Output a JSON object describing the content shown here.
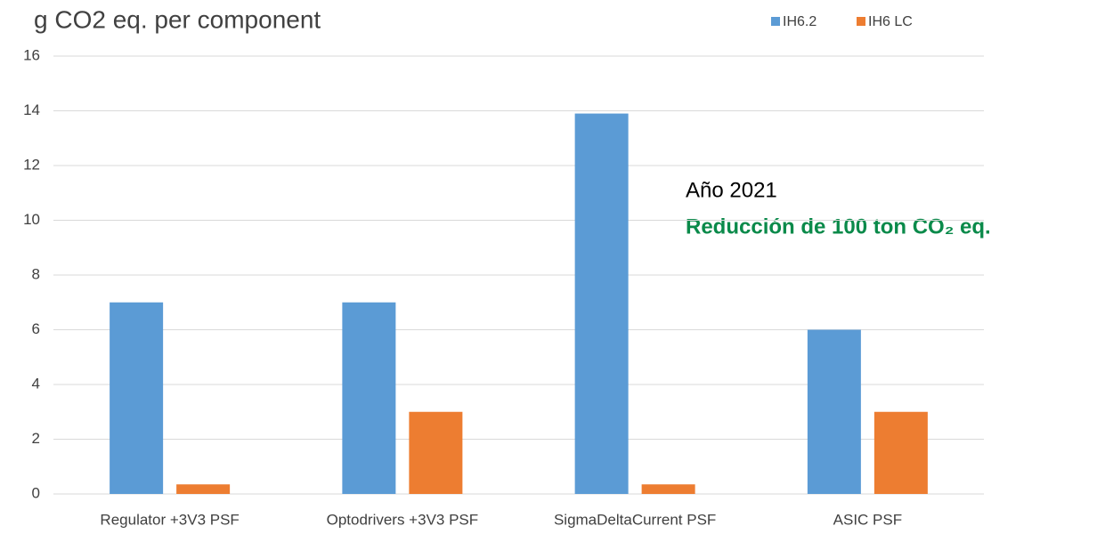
{
  "chart_data": {
    "type": "bar",
    "title": "g CO2 eq. per component",
    "categories": [
      "Regulator +3V3 PSF",
      "Optodrivers +3V3 PSF",
      "SigmaDeltaCurrent PSF",
      "ASIC PSF"
    ],
    "series": [
      {
        "name": "IH6.2",
        "color": "#5b9bd5",
        "values": [
          7,
          7,
          13.9,
          6
        ]
      },
      {
        "name": "IH6 LC",
        "color": "#ed7d31",
        "values": [
          0.35,
          3,
          0.35,
          3
        ]
      }
    ],
    "ylim": [
      0,
      16
    ],
    "yticks": [
      0,
      2,
      4,
      6,
      8,
      10,
      12,
      14,
      16
    ],
    "grid": true,
    "legend": "top-right",
    "annotations": [
      "Año 2021",
      "Reducción de 100 ton CO₂ eq."
    ]
  }
}
